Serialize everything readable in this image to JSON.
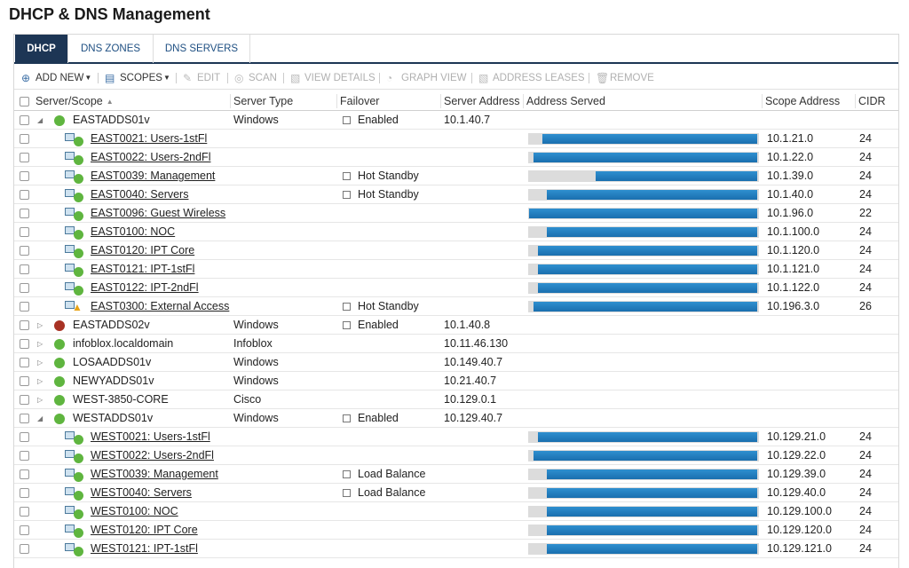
{
  "header": {
    "title": "DHCP & DNS Management"
  },
  "tabs": [
    {
      "label": "DHCP",
      "active": true
    },
    {
      "label": "DNS ZONES",
      "active": false
    },
    {
      "label": "DNS SERVERS",
      "active": false
    }
  ],
  "toolbar": [
    {
      "label": "ADD NEW",
      "enabled": true,
      "menu": true
    },
    {
      "label": "SCOPES",
      "enabled": true,
      "menu": true
    },
    {
      "label": "EDIT",
      "enabled": false
    },
    {
      "label": "SCAN",
      "enabled": false
    },
    {
      "label": "VIEW DETAILS",
      "enabled": false
    },
    {
      "label": "GRAPH VIEW",
      "enabled": false
    },
    {
      "label": "ADDRESS LEASES",
      "enabled": false
    },
    {
      "label": "REMOVE",
      "enabled": false
    }
  ],
  "columns": [
    "Server/Scope",
    "Server Type",
    "Failover",
    "Server Address",
    "Address Served",
    "Scope Address",
    "CIDR"
  ],
  "rows": [
    {
      "kind": "server",
      "expanded": true,
      "status": "up",
      "name": "EASTADDS01v",
      "type": "Windows",
      "failover": "Enabled",
      "server_address": "10.1.40.7"
    },
    {
      "kind": "scope",
      "status": "up",
      "name": "EAST0021: Users-1stFl",
      "served": 93,
      "scope_address": "10.1.21.0",
      "cidr": 24
    },
    {
      "kind": "scope",
      "status": "up",
      "name": "EAST0022: Users-2ndFl",
      "served": 97,
      "scope_address": "10.1.22.0",
      "cidr": 24
    },
    {
      "kind": "scope",
      "status": "up",
      "name": "EAST0039: Management",
      "failover": "Hot Standby",
      "served": 70,
      "scope_address": "10.1.39.0",
      "cidr": 24
    },
    {
      "kind": "scope",
      "status": "up",
      "name": "EAST0040: Servers",
      "failover": "Hot Standby",
      "served": 91,
      "scope_address": "10.1.40.0",
      "cidr": 24
    },
    {
      "kind": "scope",
      "status": "up",
      "name": "EAST0096: Guest Wireless",
      "served": 99,
      "scope_address": "10.1.96.0",
      "cidr": 22
    },
    {
      "kind": "scope",
      "status": "up",
      "name": "EAST0100: NOC",
      "served": 91,
      "scope_address": "10.1.100.0",
      "cidr": 24
    },
    {
      "kind": "scope",
      "status": "up",
      "name": "EAST0120: IPT Core",
      "served": 95,
      "scope_address": "10.1.120.0",
      "cidr": 24
    },
    {
      "kind": "scope",
      "status": "up",
      "name": "EAST0121: IPT-1stFl",
      "served": 95,
      "scope_address": "10.1.121.0",
      "cidr": 24
    },
    {
      "kind": "scope",
      "status": "up",
      "name": "EAST0122: IPT-2ndFl",
      "served": 95,
      "scope_address": "10.1.122.0",
      "cidr": 24
    },
    {
      "kind": "scope",
      "status": "warning",
      "name": "EAST0300: External Access",
      "failover": "Hot Standby",
      "served": 97,
      "scope_address": "10.196.3.0",
      "cidr": 26
    },
    {
      "kind": "server",
      "expanded": false,
      "status": "down",
      "name": "EASTADDS02v",
      "type": "Windows",
      "failover": "Enabled",
      "server_address": "10.1.40.8"
    },
    {
      "kind": "server",
      "expanded": false,
      "status": "up",
      "name": "infoblox.localdomain",
      "type": "Infoblox",
      "server_address": "10.11.46.130"
    },
    {
      "kind": "server",
      "expanded": false,
      "status": "up",
      "name": "LOSAADDS01v",
      "type": "Windows",
      "server_address": "10.149.40.7"
    },
    {
      "kind": "server",
      "expanded": false,
      "status": "up",
      "name": "NEWYADDS01v",
      "type": "Windows",
      "server_address": "10.21.40.7"
    },
    {
      "kind": "server",
      "expanded": false,
      "status": "up",
      "name": "WEST-3850-CORE",
      "type": "Cisco",
      "server_address": "10.129.0.1"
    },
    {
      "kind": "server",
      "expanded": true,
      "status": "up",
      "name": "WESTADDS01v",
      "type": "Windows",
      "failover": "Enabled",
      "server_address": "10.129.40.7"
    },
    {
      "kind": "scope",
      "status": "up",
      "name": "WEST0021: Users-1stFl",
      "served": 95,
      "scope_address": "10.129.21.0",
      "cidr": 24
    },
    {
      "kind": "scope",
      "status": "up",
      "name": "WEST0022: Users-2ndFl",
      "served": 97,
      "scope_address": "10.129.22.0",
      "cidr": 24
    },
    {
      "kind": "scope",
      "status": "up",
      "name": "WEST0039: Management",
      "failover": "Load Balance",
      "served": 91,
      "scope_address": "10.129.39.0",
      "cidr": 24
    },
    {
      "kind": "scope",
      "status": "up",
      "name": "WEST0040: Servers",
      "failover": "Load Balance",
      "served": 91,
      "scope_address": "10.129.40.0",
      "cidr": 24
    },
    {
      "kind": "scope",
      "status": "up",
      "name": "WEST0100: NOC",
      "served": 91,
      "scope_address": "10.129.100.0",
      "cidr": 24
    },
    {
      "kind": "scope",
      "status": "up",
      "name": "WEST0120: IPT Core",
      "served": 91,
      "scope_address": "10.129.120.0",
      "cidr": 24
    },
    {
      "kind": "scope",
      "status": "up",
      "name": "WEST0121: IPT-1stFl",
      "served": 91,
      "scope_address": "10.129.121.0",
      "cidr": 24
    }
  ]
}
